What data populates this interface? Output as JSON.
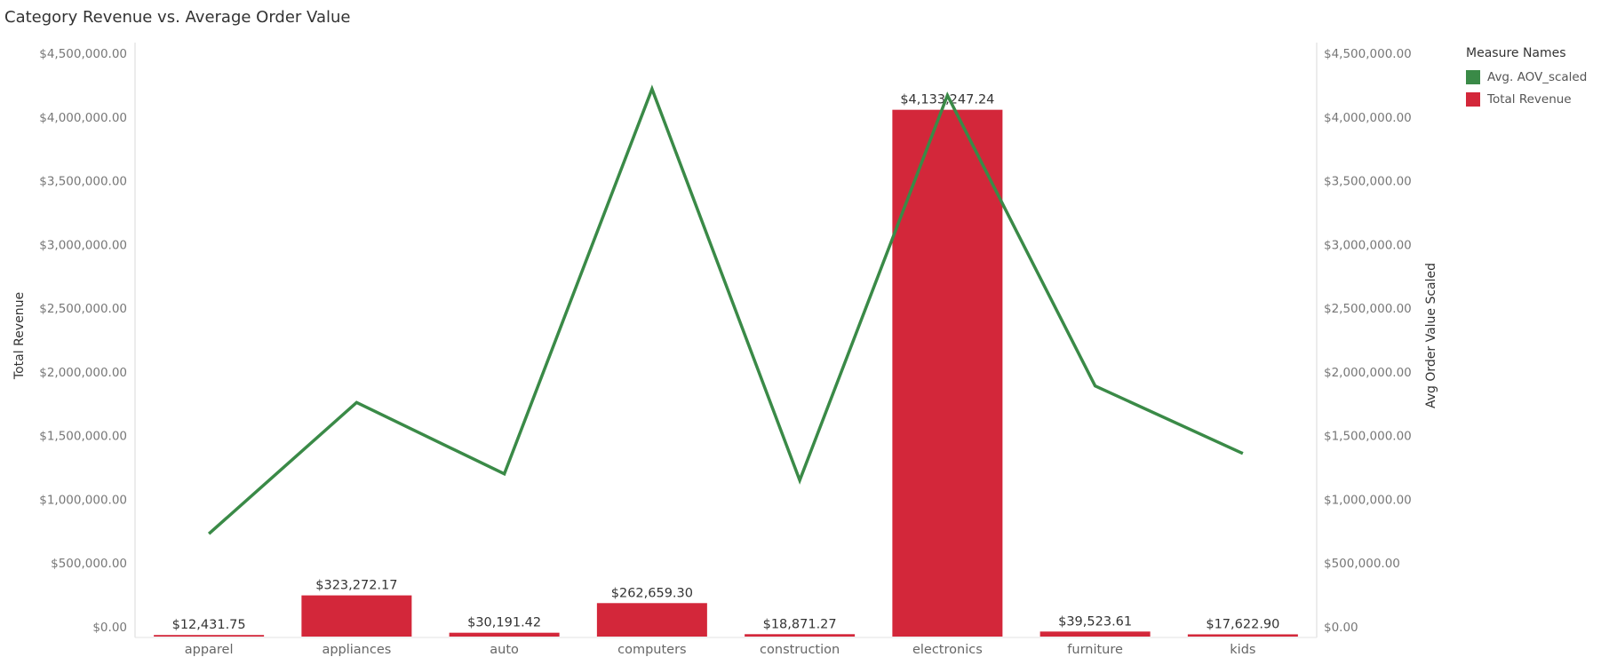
{
  "chart_data": {
    "type": "bar",
    "title": "Category Revenue vs. Average Order Value",
    "categories": [
      "apparel",
      "appliances",
      "auto",
      "computers",
      "construction",
      "electronics",
      "furniture",
      "kids"
    ],
    "series": [
      {
        "name": "Total Revenue",
        "type": "bar",
        "axis": "left",
        "color": "#d3273a",
        "values": [
          12431.75,
          323272.17,
          30191.42,
          262659.3,
          18871.27,
          4133247.24,
          39523.61,
          17622.9
        ],
        "labels": [
          "$12,431.75",
          "$323,272.17",
          "$30,191.42",
          "$262,659.30",
          "$18,871.27",
          "$4,133,247.24",
          "$39,523.61",
          "$17,622.90"
        ]
      },
      {
        "name": "Avg. AOV_scaled",
        "type": "line",
        "axis": "right",
        "color": "#3a8a47",
        "values": [
          730000,
          1760000,
          1200000,
          4220000,
          1150000,
          4170000,
          1890000,
          1360000
        ]
      }
    ],
    "ylabel": "Total Revenue",
    "y2label": "Avg Order Value Scaled",
    "ylim": [
      0,
      4500000
    ],
    "y2lim": [
      0,
      4500000
    ],
    "yticks": [
      "$0.00",
      "$500,000.00",
      "$1,000,000.00",
      "$1,500,000.00",
      "$2,000,000.00",
      "$2,500,000.00",
      "$3,000,000.00",
      "$3,500,000.00",
      "$4,000,000.00",
      "$4,500,000.00"
    ],
    "ytick_values": [
      0,
      500000,
      1000000,
      1500000,
      2000000,
      2500000,
      3000000,
      3500000,
      4000000,
      4500000
    ],
    "grid": false,
    "legend": {
      "title": "Measure Names",
      "position": "right",
      "items": [
        {
          "label": "Avg. AOV_scaled",
          "color": "#3a8a47"
        },
        {
          "label": "Total Revenue",
          "color": "#d3273a"
        }
      ]
    }
  }
}
